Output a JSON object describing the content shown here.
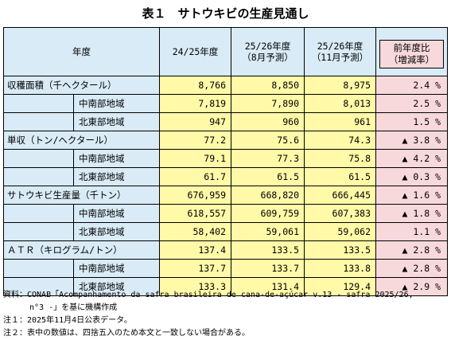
{
  "title": "表１　サトウキビの生産見通し",
  "header": {
    "label": "年度",
    "col1": "24/25年度",
    "col2_line1": "25/26年度",
    "col2_line2": "（8月予測）",
    "col3_line1": "25/26年度",
    "col3_line2": "（11月予測）",
    "col4_line1": "前年度比",
    "col4_line2": "（増減率）"
  },
  "rows": [
    {
      "label": "収穫面積（千ヘクタール）",
      "v1": "8,766",
      "v2": "8,850",
      "v3": "8,975",
      "yoy": "2.4 %"
    },
    {
      "label": "中南部地域",
      "v1": "7,819",
      "v2": "7,890",
      "v3": "8,013",
      "yoy": "2.5 %"
    },
    {
      "label": "北東部地域",
      "v1": "947",
      "v2": "960",
      "v3": "961",
      "yoy": "1.5 %"
    },
    {
      "label": "単収（トン/ヘクタール）",
      "v1": "77.2",
      "v2": "75.6",
      "v3": "74.3",
      "yoy": "▲ 3.8 %"
    },
    {
      "label": "中南部地域",
      "v1": "79.1",
      "v2": "77.3",
      "v3": "75.8",
      "yoy": "▲ 4.2 %"
    },
    {
      "label": "北東部地域",
      "v1": "61.7",
      "v2": "61.5",
      "v3": "61.5",
      "yoy": "▲ 0.3 %"
    },
    {
      "label": "サトウキビ生産量（千トン）",
      "v1": "676,959",
      "v2": "668,820",
      "v3": "666,445",
      "yoy": "▲ 1.6 %"
    },
    {
      "label": "中南部地域",
      "v1": "618,557",
      "v2": "609,759",
      "v3": "607,383",
      "yoy": "▲ 1.8 %"
    },
    {
      "label": "北東部地域",
      "v1": "58,402",
      "v2": "59,061",
      "v3": "59,062",
      "yoy": "1.1 %"
    },
    {
      "label": "ＡＴＲ（キログラム/トン）",
      "v1": "137.4",
      "v2": "133.5",
      "v3": "133.5",
      "yoy": "▲ 2.8 %"
    },
    {
      "label": "中南部地域",
      "v1": "137.7",
      "v2": "133.7",
      "v3": "133.8",
      "yoy": "▲ 2.8 %"
    },
    {
      "label": "北東部地域",
      "v1": "133.3",
      "v2": "131.4",
      "v3": "129.4",
      "yoy": "▲ 2.9 %"
    }
  ],
  "notes": {
    "source_line1": "資料：CONAB「Acompanhamento da safra brasileira de cana-de-açúcar v.13 - safra 2025/26,",
    "source_line2": "n°3 -」を基に機構作成",
    "note1": "注１：2025年11月4日公表データ。",
    "note2": "注２：表中の数値は、四捨五入のため本文と一致しない場合がある。"
  },
  "colors": {
    "header_bg": "#d9ebf6",
    "value_bg": "#fff9a8",
    "yoy_bg": "#f7d9dc"
  }
}
